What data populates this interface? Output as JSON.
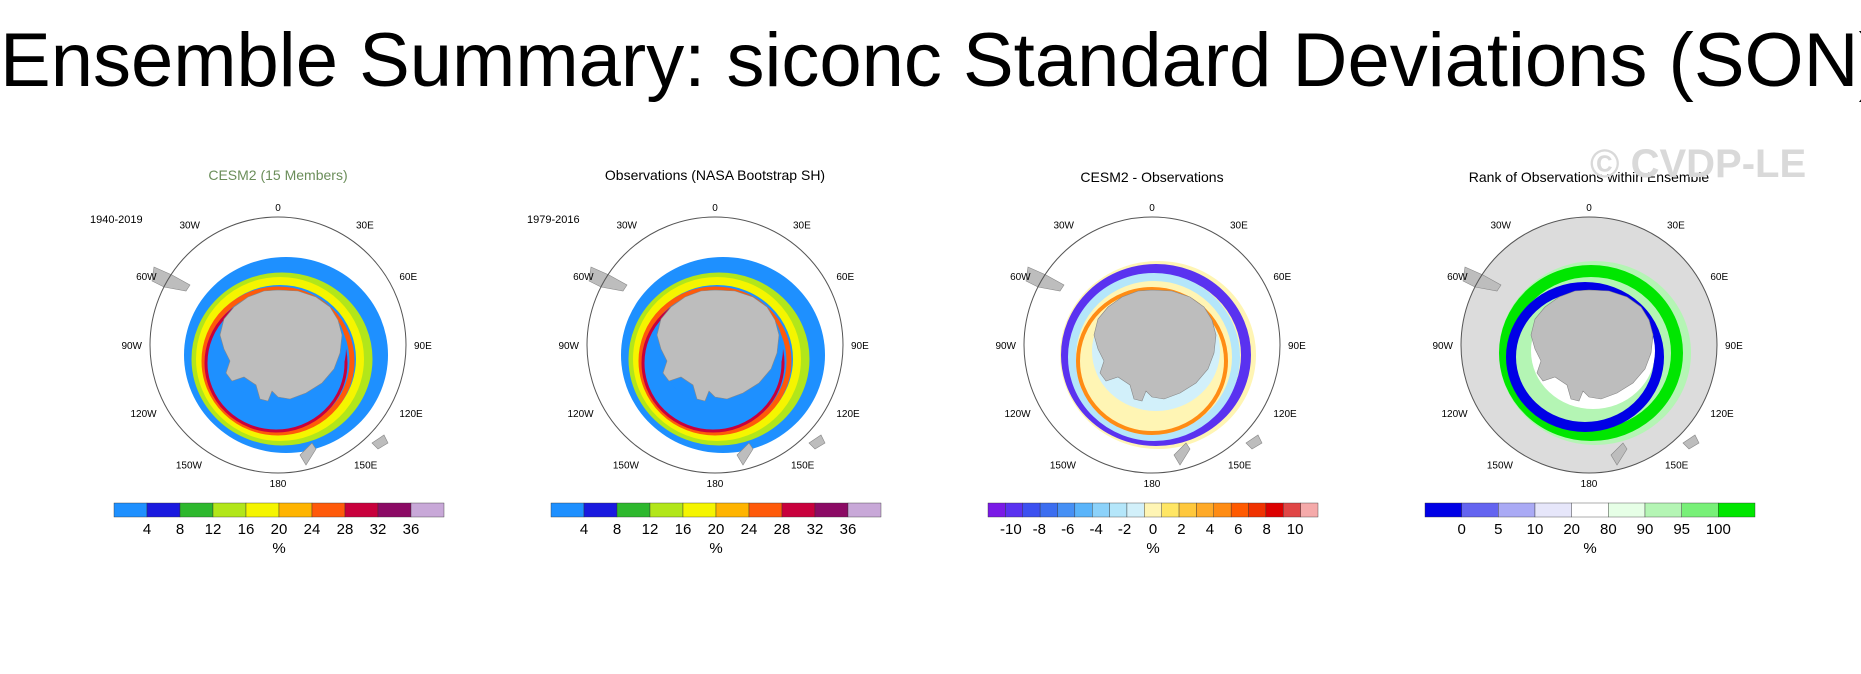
{
  "title": "Ensemble Summary: siconc Standard Deviations (SON)",
  "watermark": "© CVDP-LE",
  "colors": {
    "land": "#bdbdbd",
    "outside_ice": "#dcdcdc",
    "circle": "#555555",
    "title_green": "#6b8e5a"
  },
  "map_labels": {
    "top": "0",
    "bottom": "180",
    "left": "90W",
    "right": "90E",
    "ul1": "30W",
    "ul2": "60W",
    "ur1": "30E",
    "ur2": "60E",
    "ll1": "120W",
    "ll2": "150W",
    "lr1": "120E",
    "lr2": "150E"
  },
  "chart_data": [
    {
      "type": "heatmap",
      "title": "CESM2 (15 Members)",
      "period": "1940-2019",
      "projection": "south-polar-stereographic",
      "unit": "%",
      "colorbar": {
        "colors": [
          "#1e90ff",
          "#1a1adf",
          "#2eb82e",
          "#b2e61a",
          "#f5f500",
          "#ffb400",
          "#ff5a0a",
          "#c8003c",
          "#8b0a64",
          "#c8a8d8"
        ],
        "tick_labels": [
          "4",
          "8",
          "12",
          "16",
          "20",
          "24",
          "28",
          "32",
          "36"
        ]
      }
    },
    {
      "type": "heatmap",
      "title": "Observations (NASA Bootstrap SH)",
      "period": "1979-2016",
      "projection": "south-polar-stereographic",
      "unit": "%",
      "colorbar": {
        "colors": [
          "#1e90ff",
          "#1a1adf",
          "#2eb82e",
          "#b2e61a",
          "#f5f500",
          "#ffb400",
          "#ff5a0a",
          "#c8003c",
          "#8b0a64",
          "#c8a8d8"
        ],
        "tick_labels": [
          "4",
          "8",
          "12",
          "16",
          "20",
          "24",
          "28",
          "32",
          "36"
        ]
      }
    },
    {
      "type": "heatmap",
      "title": "CESM2 - Observations",
      "period": "",
      "projection": "south-polar-stereographic",
      "unit": "%",
      "colorbar": {
        "colors": [
          "#7a1ae6",
          "#5a32f0",
          "#3c50f0",
          "#3c6ef0",
          "#4690f5",
          "#5ab4fa",
          "#8cd2fa",
          "#b4e6fa",
          "#d2f0fa",
          "#fff5b4",
          "#ffe664",
          "#ffc83c",
          "#ffaa28",
          "#ff8c14",
          "#ff5a00",
          "#f03200",
          "#dc0000",
          "#e04646",
          "#f5aaaa"
        ],
        "tick_labels": [
          "-10",
          "-8",
          "-6",
          "-4",
          "-2",
          "0",
          "2",
          "4",
          "6",
          "8",
          "10"
        ]
      }
    },
    {
      "type": "heatmap",
      "title": "Rank of Observations within Ensemble",
      "period": "",
      "projection": "south-polar-stereographic",
      "unit": "%",
      "colorbar": {
        "colors": [
          "#0000e6",
          "#6464f0",
          "#aaaaf5",
          "#e6e6fa",
          "#ffffff",
          "#e6ffe6",
          "#b4f5b4",
          "#78f078",
          "#00e600"
        ],
        "tick_labels": [
          "0",
          "5",
          "10",
          "20",
          "80",
          "90",
          "95",
          "100"
        ]
      }
    }
  ]
}
